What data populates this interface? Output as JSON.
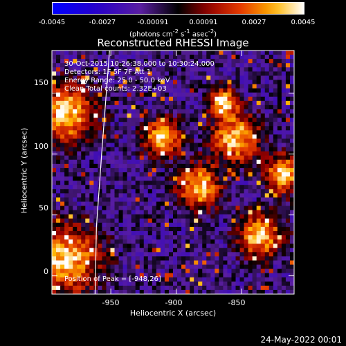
{
  "chart_data": {
    "type": "heatmap",
    "title": "Reconstructed RHESSI Image",
    "xlabel": "Heliocentric X (arcsec)",
    "ylabel": "Heliocentric Y (arcsec)",
    "xlim": [
      -995,
      -810
    ],
    "ylim": [
      -15,
      185
    ],
    "x_ticks": [
      "-950",
      "-900",
      "-850"
    ],
    "x_tick_values": [
      -950,
      -900,
      -850
    ],
    "y_ticks": [
      "0",
      "50",
      "100",
      "150"
    ],
    "y_tick_values": [
      0,
      50,
      100,
      150
    ],
    "colorbar": {
      "ticks": [
        "-0.0045",
        "-0.0027",
        "-0.00091",
        "0.00091",
        "0.0027",
        "0.0045"
      ],
      "min": -0.0045,
      "max": 0.0045,
      "unit_label": "(photons cm",
      "unit_exp1": "-2",
      "unit_mid": " s",
      "unit_exp2": "-1",
      "unit_mid2": " asec",
      "unit_exp3": "-2",
      "unit_end": ")"
    },
    "annotations": {
      "time": "30-Oct-2015 10:26:38.000 to 10:30:24.000",
      "detectors": "Detectors: 1F 5F 7F  Att 1",
      "energy": "Energy Range: 25.0 - 50.0 keV",
      "method": "Clean     Total counts: 2.32E+03",
      "peak": "Position of Peak = [-948,26]"
    },
    "limb_curve": [
      [
        -962,
        -15
      ],
      [
        -961,
        40
      ],
      [
        -957,
        100
      ],
      [
        -951,
        185
      ]
    ],
    "peak_position": [
      -948,
      26
    ]
  },
  "date": "24-May-2022 00:01"
}
